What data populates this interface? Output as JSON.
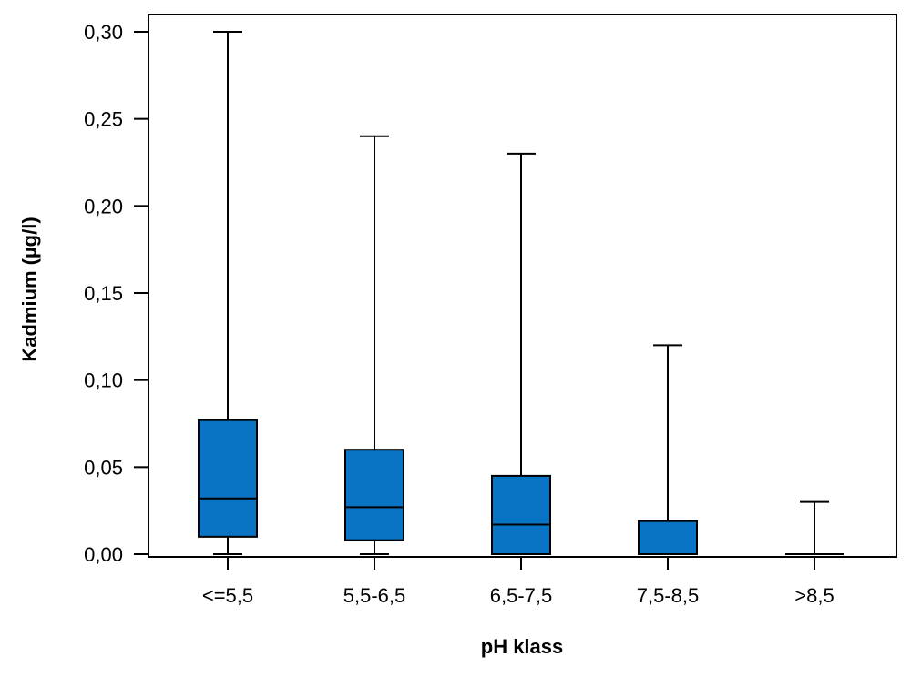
{
  "chart_data": {
    "type": "boxplot",
    "title": "",
    "xlabel": "pH klass",
    "ylabel": "Kadmium (µg/l)",
    "ylim": [
      0,
      0.3
    ],
    "yticks": [
      0.0,
      0.05,
      0.1,
      0.15,
      0.2,
      0.25,
      0.3
    ],
    "ytick_labels": [
      "0,00",
      "0,05",
      "0,10",
      "0,15",
      "0,20",
      "0,25",
      "0,30"
    ],
    "categories": [
      "<=5,5",
      "5,5-6,5",
      "6,5-7,5",
      "7,5-8,5",
      ">8,5"
    ],
    "boxes": [
      {
        "category": "<=5,5",
        "min": 0.0,
        "q1": 0.01,
        "median": 0.032,
        "q3": 0.077,
        "max": 0.3
      },
      {
        "category": "5,5-6,5",
        "min": 0.0,
        "q1": 0.008,
        "median": 0.027,
        "q3": 0.06,
        "max": 0.24
      },
      {
        "category": "6,5-7,5",
        "min": 0.0,
        "q1": 0.0,
        "median": 0.017,
        "q3": 0.045,
        "max": 0.23
      },
      {
        "category": "7,5-8,5",
        "min": 0.0,
        "q1": 0.0,
        "median": 0.0,
        "q3": 0.019,
        "max": 0.12
      },
      {
        "category": ">8,5",
        "min": 0.0,
        "q1": 0.0,
        "median": 0.0,
        "q3": 0.0,
        "max": 0.03
      }
    ],
    "grid": false,
    "box_color": "#0a74c4",
    "line_color": "#000000"
  }
}
